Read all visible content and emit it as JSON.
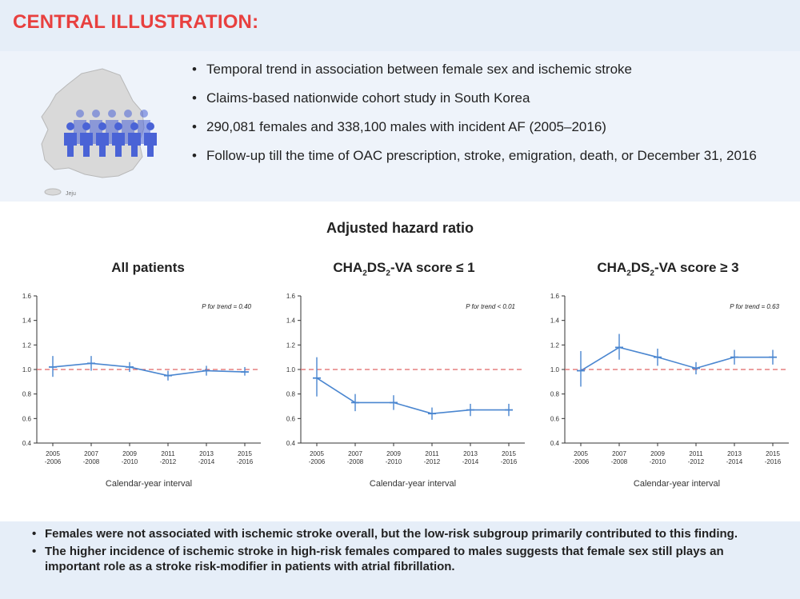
{
  "header": {
    "title": "CENTRAL ILLUSTRATION:"
  },
  "intro": {
    "bullets": [
      "Temporal trend in association between female sex and ischemic stroke",
      "Claims-based nationwide cohort study in South Korea",
      "290,081 females and 338,100 males with incident AF (2005–2016)",
      "Follow-up till the time of OAC prescription, stroke, emigration, death, or December 31, 2016"
    ],
    "map_label": "Jeju"
  },
  "section_title": "Adjusted hazard ratio",
  "colors": {
    "series": "#4a86d0",
    "reference": "#e06666",
    "people": "#4a63d6",
    "map": "#d9d9d9"
  },
  "chart_data": [
    {
      "type": "line",
      "title_parts": [
        "All patients",
        "",
        "",
        ""
      ],
      "categories": [
        [
          "2005",
          "-2006"
        ],
        [
          "2007",
          "-2008"
        ],
        [
          "2009",
          "-2010"
        ],
        [
          "2011",
          "-2012"
        ],
        [
          "2013",
          "-2014"
        ],
        [
          "2015",
          "-2016"
        ]
      ],
      "values": [
        1.02,
        1.05,
        1.02,
        0.95,
        0.99,
        0.98
      ],
      "ci_lower": [
        0.94,
        0.99,
        0.98,
        0.91,
        0.95,
        0.95
      ],
      "ci_upper": [
        1.11,
        1.11,
        1.06,
        0.99,
        1.03,
        1.02
      ],
      "reference_line": 1.0,
      "annotation": "P for trend = 0.40",
      "xlabel": "Calendar-year interval",
      "ylabel": "",
      "ylim": [
        0.4,
        1.6
      ],
      "yticks": [
        "0.4",
        "0.6",
        "0.8",
        "1.0",
        "1.2",
        "1.4",
        "1.6"
      ]
    },
    {
      "type": "line",
      "title_parts": [
        "CHA",
        "2",
        "DS",
        "2",
        "-VA score ≤ 1"
      ],
      "categories": [
        [
          "2005",
          "-2006"
        ],
        [
          "2007",
          "-2008"
        ],
        [
          "2009",
          "-2010"
        ],
        [
          "2011",
          "-2012"
        ],
        [
          "2013",
          "-2014"
        ],
        [
          "2015",
          "-2016"
        ]
      ],
      "values": [
        0.93,
        0.73,
        0.73,
        0.64,
        0.67,
        0.67
      ],
      "ci_lower": [
        0.78,
        0.66,
        0.67,
        0.59,
        0.62,
        0.62
      ],
      "ci_upper": [
        1.1,
        0.8,
        0.79,
        0.69,
        0.72,
        0.72
      ],
      "reference_line": 1.0,
      "annotation": "P for trend < 0.01",
      "xlabel": "Calendar-year interval",
      "ylabel": "",
      "ylim": [
        0.4,
        1.6
      ],
      "yticks": [
        "0.4",
        "0.6",
        "0.8",
        "1.0",
        "1.2",
        "1.4",
        "1.6"
      ]
    },
    {
      "type": "line",
      "title_parts": [
        "CHA",
        "2",
        "DS",
        "2",
        "-VA score ≥ 3"
      ],
      "categories": [
        [
          "2005",
          "-2006"
        ],
        [
          "2007",
          "-2008"
        ],
        [
          "2009",
          "-2010"
        ],
        [
          "2011",
          "-2012"
        ],
        [
          "2013",
          "-2014"
        ],
        [
          "2015",
          "-2016"
        ]
      ],
      "values": [
        0.99,
        1.18,
        1.1,
        1.01,
        1.1,
        1.1
      ],
      "ci_lower": [
        0.86,
        1.08,
        1.03,
        0.96,
        1.04,
        1.04
      ],
      "ci_upper": [
        1.15,
        1.29,
        1.17,
        1.06,
        1.16,
        1.16
      ],
      "reference_line": 1.0,
      "annotation": "P for trend = 0.63",
      "xlabel": "Calendar-year interval",
      "ylabel": "",
      "ylim": [
        0.4,
        1.6
      ],
      "yticks": [
        "0.4",
        "0.6",
        "0.8",
        "1.0",
        "1.2",
        "1.4",
        "1.6"
      ]
    }
  ],
  "footer": {
    "bullets": [
      "Females were not associated with ischemic stroke overall, but the low-risk subgroup primarily contributed to this finding.",
      "The higher incidence of ischemic stroke in high-risk females compared to males suggests that female sex still plays an important role as a stroke risk-modifier in patients with atrial fibrillation."
    ]
  }
}
